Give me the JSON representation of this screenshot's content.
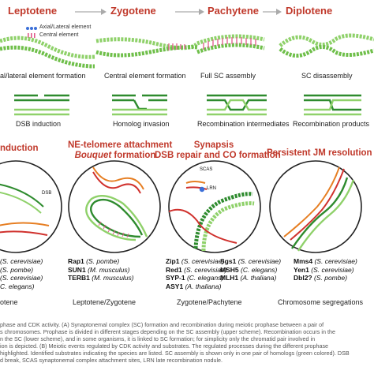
{
  "stages": [
    "Leptotene",
    "Zygotene",
    "Pachytene",
    "Diplotene"
  ],
  "legend": {
    "axial": "Axial/Lateral element",
    "central": "Central element"
  },
  "sc_captions": [
    "al/lateral element formation",
    "Central element formation",
    "Full SC assembly",
    "SC disassembly"
  ],
  "recomb_captions": [
    "DSB induction",
    "Homolog invasion",
    "Recombination intermediates",
    "Recombination products"
  ],
  "events": {
    "e1": "nduction",
    "e2_line1": "NE-telomere attachment",
    "e2_line2": "Bouquet",
    "e2_line2b": " formation",
    "e3_line1": "Synapsis",
    "e3_line2": "DSB repair and CO formation",
    "e4": "Persistent JM resolution"
  },
  "diagram_labels": {
    "dsb": "DSB",
    "scas": "SCAS",
    "lrn": "LRN"
  },
  "genes": {
    "c1": [
      {
        "s": "(S. cerevisiae)"
      },
      {
        "s": "(S. pombe)"
      },
      {
        "s": "(S. cerevisiae)"
      },
      {
        "s": "C. elegans)"
      }
    ],
    "c2": [
      {
        "g": "Rap1",
        "s": "(S. pombe)"
      },
      {
        "g": "SUN1",
        "s": "(M. musculus)"
      },
      {
        "g": "TERB1",
        "s": "(M. musculus)"
      }
    ],
    "c3a": [
      {
        "g": "Zip1",
        "s": "(S. cerevisiae)"
      },
      {
        "g": "Red1",
        "s": "(S. cerevisiae)"
      },
      {
        "g": "SYP-1",
        "s": "(C. elegans)"
      },
      {
        "g": "ASY1",
        "s": "(A. thaliana)"
      }
    ],
    "c3b": [
      {
        "g": "Sgs1",
        "s": "(S. cerevisiae)"
      },
      {
        "g": "MSH5",
        "s": "(C. elegans)"
      },
      {
        "g": "MLH1",
        "s": "(A. thaliana)"
      }
    ],
    "c4": [
      {
        "g": "Mms4",
        "s": "(S. cerevisiae)"
      },
      {
        "g": "Yen1",
        "s": "(S. cerevisiae)"
      },
      {
        "g": "Dbl2?",
        "s": "(S. pombe)"
      }
    ]
  },
  "bottom": [
    "otene",
    "Leptotene/Zygotene",
    "Zygotene/Pachytene",
    "Chromosome segregations"
  ],
  "figure_caption": [
    "phase and CDK activity. (A) Synaptonemal complex (SC) formation and recombination during meiotic prophase between a pair of",
    "s chromosomes. Prophase is divided in different stages depending on the SC assembly (upper scheme). Recombination occurs in the",
    "n the SC (lower scheme), and in some organisms, it is linked to SC formation; for simplicity only the chromatid pair involved in",
    "ion is depicted. (B) Meiotic events regulated by CDK activity and substrates. The regulated processes during the different prophase",
    "highlighted. Identified substrates indicating the species are listed. SC assembly is shown only in one pair of homologs (green colored). DSB",
    "d break, SCAS synaptonemal complex attachment sites, LRN late recombination nodule."
  ],
  "colors": {
    "stage_red": "#c0392b",
    "green": "#2e8b2e",
    "light_green": "#8fd16a",
    "orange": "#e67e22",
    "red": "#d0312d",
    "blue": "#3b6fd8",
    "pink": "#e05a8a",
    "gray_arrow": "#999999"
  }
}
